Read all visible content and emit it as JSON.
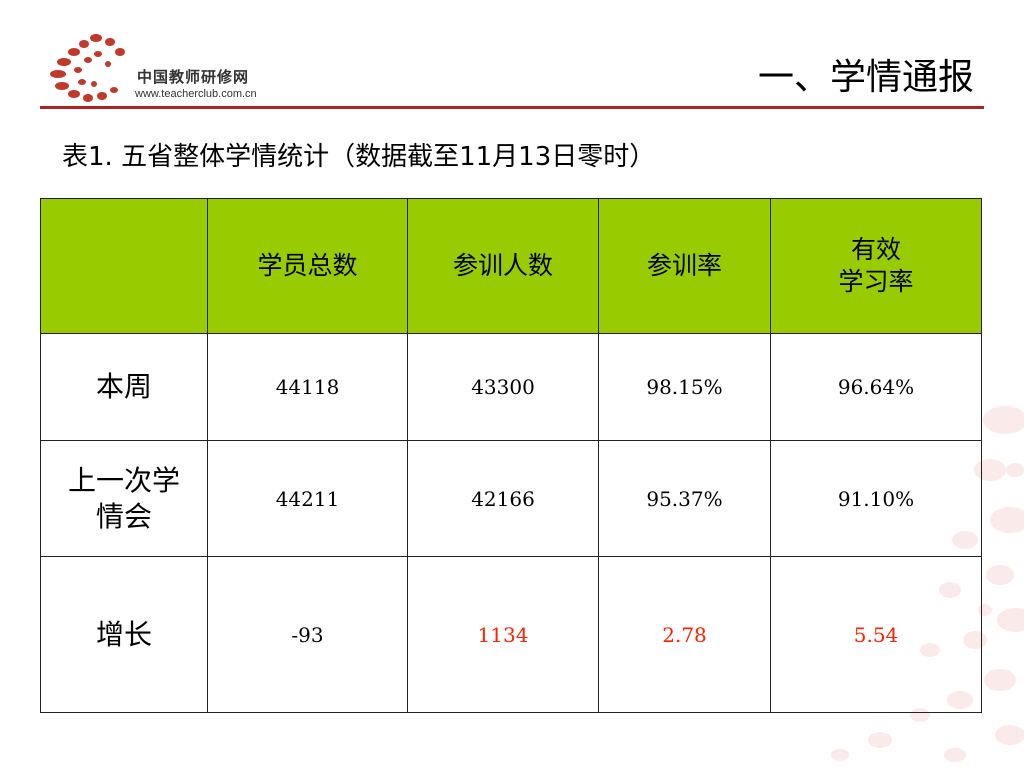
{
  "logo": {
    "name_cn": "中国教师研修网",
    "url": "www.teacherclub.com.cn"
  },
  "section_title": "一、学情通报",
  "caption": "表1. 五省整体学情统计（数据截至11月13日零时）",
  "table": {
    "headers": [
      "",
      "学员总数",
      "参训人数",
      "参训率",
      "有效\n学习率"
    ],
    "rows": [
      {
        "label": "本周",
        "cells": [
          "44118",
          "43300",
          "98.15%",
          "96.64%"
        ]
      },
      {
        "label": "上一次学\n情会",
        "cells": [
          "44211",
          "42166",
          "95.37%",
          "91.10%"
        ]
      },
      {
        "label": "增长",
        "cells": [
          "-93",
          "1134",
          "2.78",
          "5.54"
        ]
      }
    ]
  },
  "colors": {
    "header_bg": "#99cc00",
    "rule": "#b22222",
    "highlight": "#ff2200",
    "logo_dots": "#c0392b",
    "deco_dots": "#fbeaea"
  }
}
